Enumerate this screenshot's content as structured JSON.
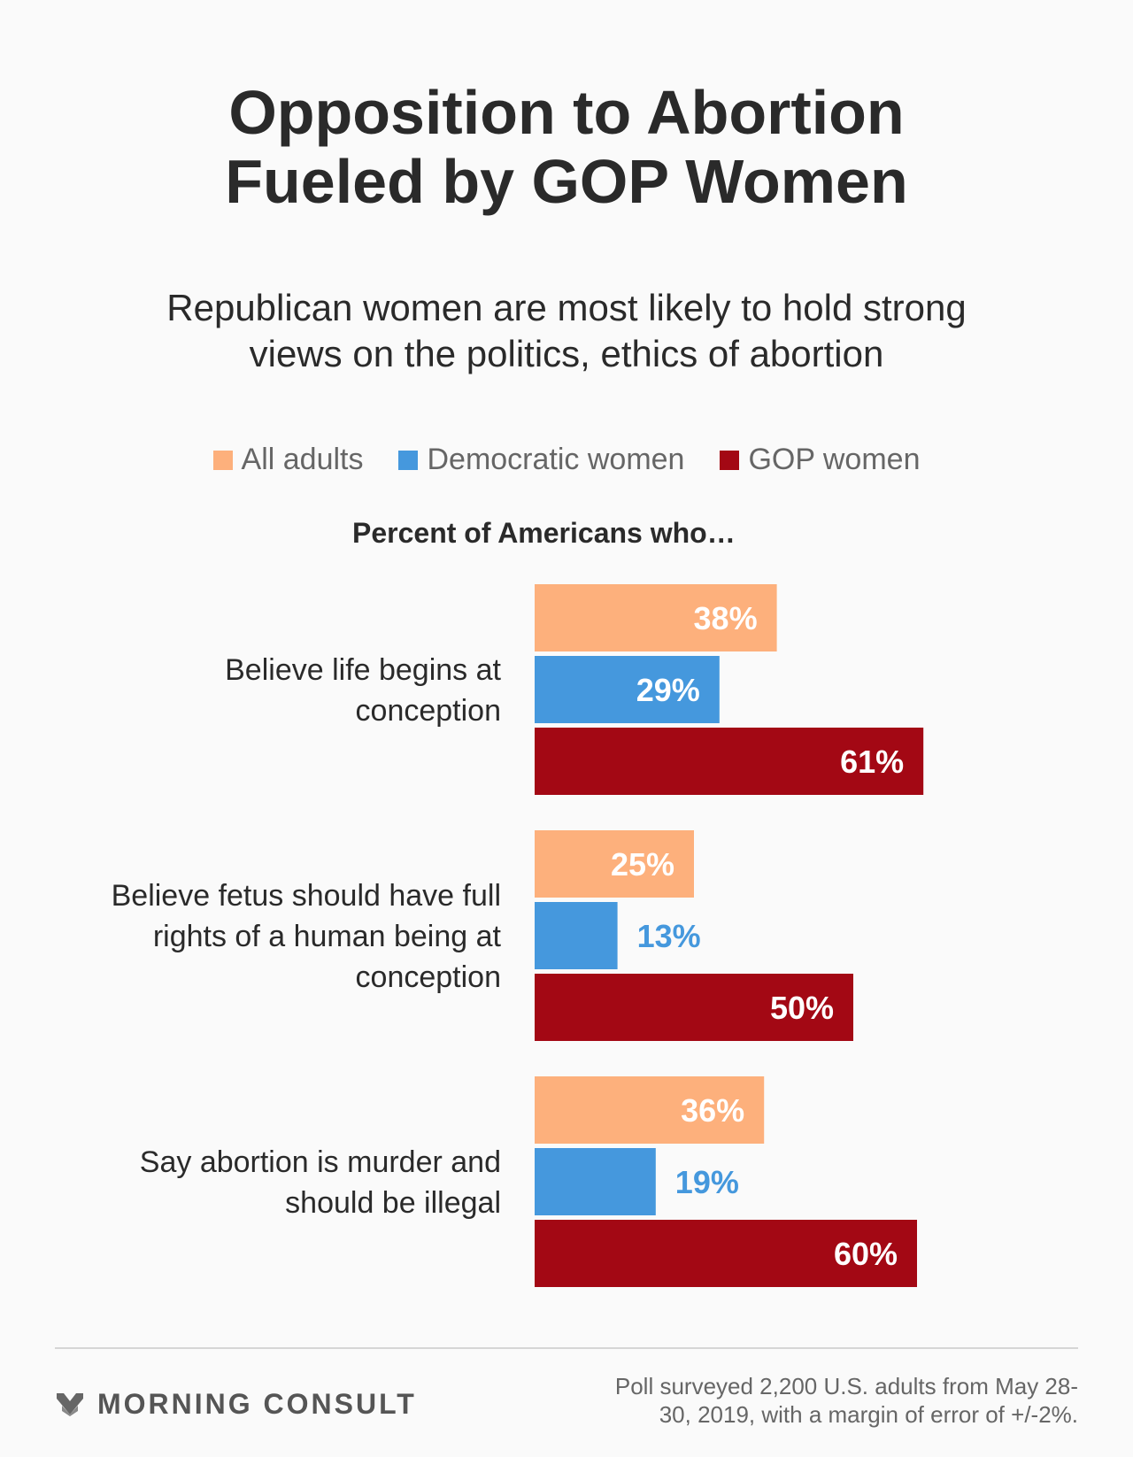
{
  "header": {
    "title_lines": [
      "Opposition to Abortion",
      "Fueled by GOP Women"
    ],
    "subtitle_lines": [
      "Republican women are most likely to hold strong",
      "views on the politics, ethics of abortion"
    ]
  },
  "legend": [
    {
      "label": "All adults",
      "color": "#fdb07c"
    },
    {
      "label": "Democratic women",
      "color": "#4598dd"
    },
    {
      "label": "GOP women",
      "color": "#a30814"
    }
  ],
  "chart_data": {
    "type": "bar",
    "orientation": "horizontal",
    "title": "Opposition to Abortion Fueled by GOP Women",
    "subtitle": "Republican women are most likely to hold strong views on the politics, ethics of abortion",
    "value_axis_label": "Percent of Americans who…",
    "categories": [
      [
        "Believe life begins at",
        "conception"
      ],
      [
        "Believe fetus should have full",
        "rights of a human being at",
        "conception"
      ],
      [
        "Say abortion is murder and",
        "should be illegal"
      ]
    ],
    "series": [
      {
        "name": "All adults",
        "color": "#fdb07c",
        "values": [
          38,
          25,
          36
        ],
        "labels": [
          "38%",
          "25%",
          "36%"
        ]
      },
      {
        "name": "Democratic women",
        "color": "#4598dd",
        "values": [
          29,
          13,
          19
        ],
        "labels": [
          "29%",
          "13%",
          "19%"
        ]
      },
      {
        "name": "GOP women",
        "color": "#a30814",
        "values": [
          61,
          50,
          60
        ],
        "labels": [
          "61%",
          "50%",
          "60%"
        ]
      }
    ],
    "xlim": [
      0,
      100
    ],
    "grid": false,
    "legend_position": "top-center"
  },
  "footer": {
    "brand": "MORNING CONSULT",
    "note_lines": [
      "Poll surveyed 2,200 U.S. adults from May 28-",
      "30, 2019, with a margin of error of +/-2%."
    ]
  }
}
